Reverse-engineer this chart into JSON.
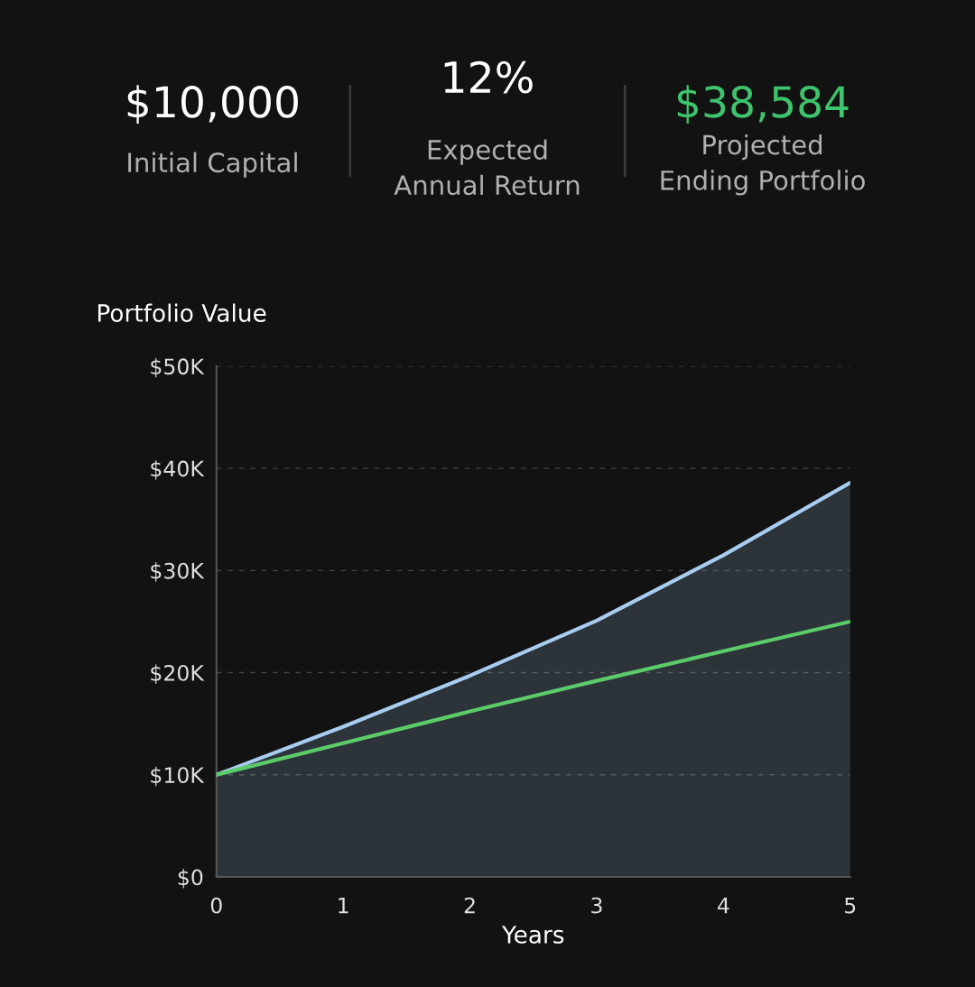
{
  "chart_data": {
    "type": "area",
    "annotations": [
      "$10,000",
      "Initial Capital",
      "12%",
      "Expected\nAnnual Return",
      "$38,584",
      "Projected\nEnding Portfolio"
    ],
    "ylabel": "Portfolio Value",
    "xlabel": "Years",
    "x": [
      0,
      1,
      2,
      3,
      4,
      5
    ],
    "series": [
      {
        "color": "#a8cdf0",
        "values": [
          10000,
          14700,
          19700,
          25100,
          31500,
          38600
        ]
      },
      {
        "type": "line",
        "color": "#5ccc6a",
        "values": [
          10000,
          13100,
          16200,
          19200,
          22100,
          25000
        ]
      }
    ],
    "xlim": [
      0,
      5
    ],
    "ylim": [
      0,
      50000
    ],
    "xticks": [
      0,
      1,
      2,
      3,
      4,
      5
    ],
    "yticks": [
      {
        "value": 0,
        "label": "$0"
      },
      {
        "value": 10000,
        "label": "$10K"
      },
      {
        "value": 20000,
        "label": "$20K"
      },
      {
        "value": 30000,
        "label": "$30K"
      },
      {
        "value": 40000,
        "label": "$40K"
      },
      {
        "value": 50000,
        "label": "$50K"
      }
    ],
    "grid": "y",
    "marker": "none",
    "line_style": "solid"
  }
}
